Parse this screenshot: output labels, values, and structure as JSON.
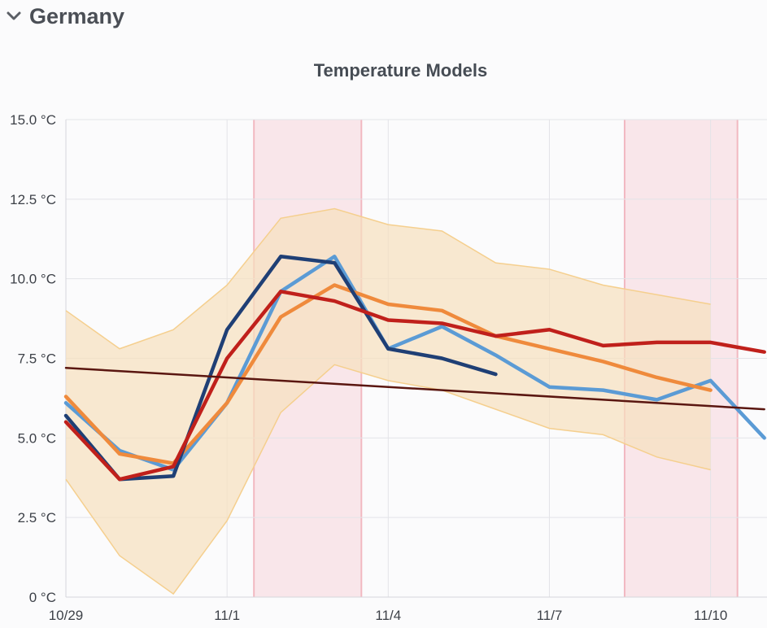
{
  "section": {
    "title": "Germany"
  },
  "chart_data": {
    "type": "line",
    "title": "Temperature Models",
    "x_ticks": [
      "10/29",
      "11/1",
      "11/4",
      "11/7",
      "11/10"
    ],
    "x_tick_positions": [
      0,
      3,
      6,
      9,
      12
    ],
    "y_ticks": [
      "0 °C",
      "2.5 °C",
      "5.0 °C",
      "7.5 °C",
      "10.0 °C",
      "12.5 °C",
      "15.0 °C"
    ],
    "ylim": [
      0,
      15
    ],
    "xlim": [
      0,
      13.05
    ],
    "grid": true,
    "highlight_ranges": [
      [
        3.5,
        5.5
      ],
      [
        10.4,
        12.5
      ]
    ],
    "band": {
      "color": "#f6dfbd",
      "x": [
        0,
        1,
        2,
        3,
        4,
        5,
        6,
        7,
        8,
        9,
        10,
        11,
        12
      ],
      "upper": [
        9.0,
        7.8,
        8.4,
        9.8,
        11.9,
        12.2,
        11.7,
        11.5,
        10.5,
        10.3,
        9.8,
        9.5,
        9.2
      ],
      "lower": [
        3.7,
        1.3,
        0.1,
        2.4,
        5.8,
        7.3,
        6.8,
        6.5,
        5.9,
        5.3,
        5.1,
        4.4,
        4.0
      ]
    },
    "series": [
      {
        "color": "#5b9bd5",
        "x": [
          0,
          1,
          2,
          3,
          4,
          5,
          6,
          7,
          8,
          9,
          10,
          11,
          12,
          13
        ],
        "values": [
          6.1,
          4.6,
          4.0,
          6.1,
          9.6,
          10.7,
          7.8,
          8.5,
          7.6,
          6.6,
          6.5,
          6.2,
          6.8,
          5.0
        ]
      },
      {
        "color": "#ef8a3c",
        "x": [
          0,
          1,
          2,
          3,
          4,
          5,
          6,
          7,
          8,
          9,
          10,
          11,
          12
        ],
        "values": [
          6.3,
          4.5,
          4.2,
          6.1,
          8.8,
          9.8,
          9.2,
          9.0,
          8.2,
          7.8,
          7.4,
          6.9,
          6.5
        ]
      },
      {
        "color": "#1f3f75",
        "x": [
          0,
          1,
          2,
          3,
          4,
          5,
          6,
          7,
          8
        ],
        "values": [
          5.7,
          3.7,
          3.8,
          8.4,
          10.7,
          10.5,
          7.8,
          7.5,
          7.0
        ]
      },
      {
        "color": "#c0201b",
        "x": [
          0,
          1,
          2,
          3,
          4,
          5,
          6,
          7,
          8,
          9,
          10,
          11,
          12,
          13
        ],
        "values": [
          5.5,
          3.7,
          4.1,
          7.5,
          9.6,
          9.3,
          8.7,
          8.6,
          8.2,
          8.4,
          7.9,
          8.0,
          8.0,
          7.7
        ]
      },
      {
        "color": "#5a1610",
        "x": [
          0,
          13
        ],
        "values": [
          7.2,
          5.9
        ]
      }
    ]
  }
}
